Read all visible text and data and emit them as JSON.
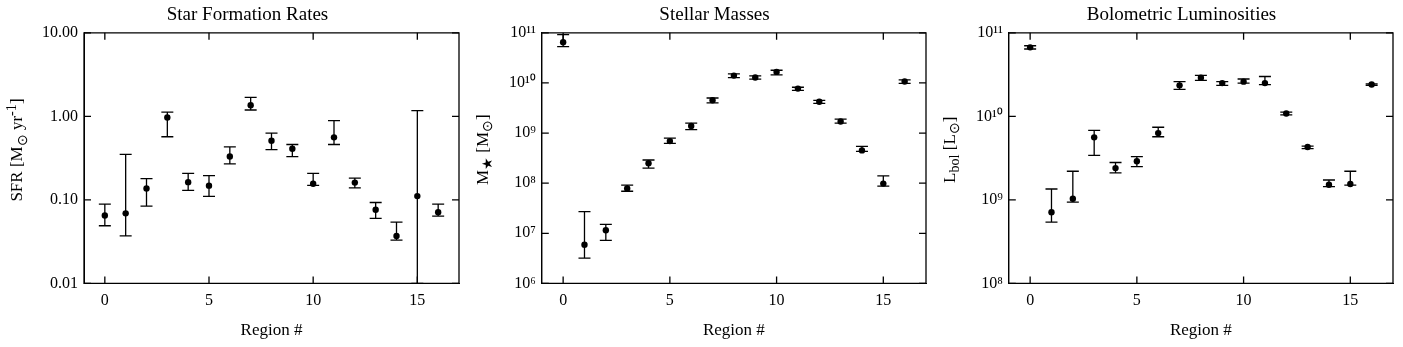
{
  "chart_data": [
    {
      "type": "scatter",
      "title": "Star Formation Rates",
      "xlabel": "Region #",
      "ylabel": "SFR [M$_{⊙}$ yr$^{-1}$]",
      "log": "y",
      "marker": "circle",
      "color": "#000000",
      "x": [
        0,
        1,
        2,
        3,
        4,
        5,
        6,
        7,
        8,
        9,
        10,
        11,
        12,
        13,
        14,
        15,
        16
      ],
      "values": [
        0.065,
        0.069,
        0.137,
        0.97,
        0.163,
        0.148,
        0.33,
        1.36,
        0.51,
        0.41,
        0.156,
        0.56,
        0.161,
        0.076,
        0.037,
        0.111,
        0.071
      ],
      "errors": [
        [
          0.049,
          0.089
        ],
        [
          0.037,
          0.35
        ],
        [
          0.084,
          0.18
        ],
        [
          0.57,
          1.12
        ],
        [
          0.13,
          0.208
        ],
        [
          0.11,
          0.195
        ],
        [
          0.27,
          0.43
        ],
        [
          1.19,
          1.69
        ],
        [
          0.4,
          0.63
        ],
        [
          0.33,
          0.46
        ],
        [
          0.149,
          0.208
        ],
        [
          0.46,
          0.89
        ],
        [
          0.139,
          0.182
        ],
        [
          0.06,
          0.093
        ],
        [
          0.033,
          0.054
        ],
        [
          0.01,
          1.17
        ],
        [
          0.064,
          0.089
        ]
      ],
      "xlim": [
        -1,
        17
      ],
      "xticks": [
        0,
        5,
        10,
        15
      ],
      "ylim": [
        0.01,
        10
      ],
      "yticks": [
        {
          "value": 0.01,
          "label": "0.01"
        },
        {
          "value": 0.1,
          "label": "0.10"
        },
        {
          "value": 1,
          "label": "1.00"
        },
        {
          "value": 10,
          "label": "10.00"
        }
      ]
    },
    {
      "type": "scatter",
      "title": "Stellar Masses",
      "xlabel": "Region #",
      "ylabel": "M$_{★}$ [M$_{⊙}$]",
      "log": "y",
      "marker": "circle",
      "color": "#000000",
      "x": [
        0,
        1,
        2,
        3,
        4,
        5,
        6,
        7,
        8,
        9,
        10,
        11,
        12,
        13,
        14,
        15,
        16
      ],
      "values": [
        65000000000.0,
        5900000.0,
        11500000.0,
        78000000.0,
        250000000.0,
        690000000.0,
        1380000000.0,
        4500000000.0,
        14000000000.0,
        12800000000.0,
        16600000000.0,
        7700000000.0,
        4200000000.0,
        1700000000.0,
        450000000.0,
        98000000.0,
        10700000000.0
      ],
      "errors": [
        [
          53000000000.0,
          92000000000.0
        ],
        [
          3200000.0,
          27000000.0
        ],
        [
          7200000.0,
          15000000.0
        ],
        [
          69000000.0,
          91000000.0
        ],
        [
          200000000.0,
          290000000.0
        ],
        [
          620000000.0,
          790000000.0
        ],
        [
          1170000000.0,
          1580000000.0
        ],
        [
          4000000000.0,
          5000000000.0
        ],
        [
          12800000000.0,
          15200000000.0
        ],
        [
          11900000000.0,
          13800000000.0
        ],
        [
          14500000000.0,
          17900000000.0
        ],
        [
          7100000000.0,
          8200000000.0
        ],
        [
          3900000000.0,
          4500000000.0
        ],
        [
          1580000000.0,
          1900000000.0
        ],
        [
          430000000.0,
          540000000.0
        ],
        [
          87000000.0,
          140000000.0
        ],
        [
          9800000000.0,
          11500000000.0
        ]
      ],
      "xlim": [
        -1,
        17
      ],
      "xticks": [
        0,
        5,
        10,
        15
      ],
      "ylim": [
        1000000.0,
        100000000000.0
      ],
      "yticks": [
        {
          "value": 1000000.0,
          "label": "10⁶"
        },
        {
          "value": 10000000.0,
          "label": "10⁷"
        },
        {
          "value": 100000000.0,
          "label": "10⁸"
        },
        {
          "value": 1000000000.0,
          "label": "10⁹"
        },
        {
          "value": 10000000000.0,
          "label": "10¹⁰"
        },
        {
          "value": 100000000000.0,
          "label": "10¹¹"
        }
      ]
    },
    {
      "type": "scatter",
      "title": "Bolometric Luminosities",
      "xlabel": "Region #",
      "ylabel": "L$_{bol}$ [L$_{⊙}$]",
      "log": "y",
      "marker": "circle",
      "color": "#000000",
      "x": [
        0,
        1,
        2,
        3,
        4,
        5,
        6,
        7,
        8,
        9,
        10,
        11,
        12,
        13,
        14,
        15,
        16
      ],
      "values": [
        67000000000.0,
        710000000.0,
        1030000000.0,
        5600000000.0,
        2400000000.0,
        2900000000.0,
        6300000000.0,
        23500000000.0,
        29000000000.0,
        25000000000.0,
        26000000000.0,
        25000000000.0,
        10800000000.0,
        4300000000.0,
        1520000000.0,
        1550000000.0,
        24000000000.0
      ],
      "errors": [
        [
          64000000000.0,
          70000000000.0
        ],
        [
          540000000.0,
          1350000000.0
        ],
        [
          940000000.0,
          2200000000.0
        ],
        [
          3400000000.0,
          6800000000.0
        ],
        [
          2100000000.0,
          2800000000.0
        ],
        [
          2500000000.0,
          3300000000.0
        ],
        [
          5700000000.0,
          7400000000.0
        ],
        [
          21000000000.0,
          26000000000.0
        ],
        [
          27000000000.0,
          31000000000.0
        ],
        [
          23500000000.0,
          26000000000.0
        ],
        [
          25000000000.0,
          28000000000.0
        ],
        [
          24000000000.0,
          30000000000.0
        ],
        [
          10400000000.0,
          11200000000.0
        ],
        [
          4100000000.0,
          4400000000.0
        ],
        [
          1440000000.0,
          1730000000.0
        ],
        [
          1500000000.0,
          2200000000.0
        ],
        [
          23500000000.0,
          24500000000.0
        ]
      ],
      "xlim": [
        -1,
        17
      ],
      "xticks": [
        0,
        5,
        10,
        15
      ],
      "ylim": [
        100000000.0,
        100000000000.0
      ],
      "yticks": [
        {
          "value": 100000000.0,
          "label": "10⁸"
        },
        {
          "value": 1000000000.0,
          "label": "10⁹"
        },
        {
          "value": 10000000000.0,
          "label": "10¹⁰"
        },
        {
          "value": 100000000000.0,
          "label": "10¹¹"
        }
      ]
    }
  ]
}
